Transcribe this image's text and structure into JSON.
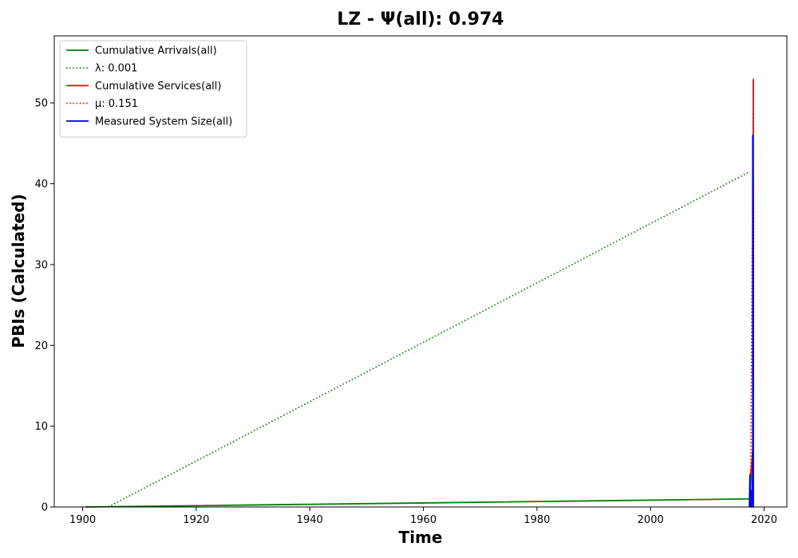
{
  "chart_data": {
    "type": "line",
    "title": "LZ -  Ψ(all): 0.974",
    "xlabel": "Time",
    "ylabel": "PBIs (Calculated)",
    "xlim": [
      1895,
      2024
    ],
    "ylim": [
      0,
      58.3
    ],
    "xticks": [
      1900,
      1920,
      1940,
      1960,
      1980,
      2000,
      2020
    ],
    "yticks": [
      0,
      10,
      20,
      30,
      40,
      50
    ],
    "grid": false,
    "legend_position": "top-left",
    "series": [
      {
        "name": "Cumulative Arrivals(all)",
        "style": "solid",
        "color": "#008000",
        "x": [
          1900.5,
          1960,
          2017.5,
          2017.8,
          2018.0
        ],
        "y": [
          0,
          0.5,
          1.0,
          5.0,
          7.0
        ]
      },
      {
        "name": "λ: 0.001",
        "style": "dotted",
        "color": "#008000",
        "x": [
          1904.5,
          2017.5
        ],
        "y": [
          0,
          41.5
        ]
      },
      {
        "name": "Cumulative Services(all)",
        "style": "solid",
        "color": "#ff0000",
        "x": [
          2017.6,
          2017.8,
          2018.0,
          2018.1,
          2018.1
        ],
        "y": [
          4.0,
          5.0,
          6.0,
          20.0,
          53.0
        ]
      },
      {
        "name": "μ: 0.151",
        "style": "dotted",
        "color": "#ff0000",
        "x": [
          2017.6,
          2018.1
        ],
        "y": [
          0,
          53.0
        ]
      },
      {
        "name": "Measured System Size(all)",
        "style": "solid",
        "color": "#0000ff",
        "x": [
          2017.4,
          2017.5,
          2017.6,
          2017.7,
          2017.8,
          2017.9,
          2018.0,
          2018.0,
          2018.1,
          2018.1,
          2018.2
        ],
        "y": [
          0,
          4.0,
          0,
          2.0,
          0,
          1.0,
          5.0,
          46.0,
          35.0,
          0,
          0
        ]
      }
    ]
  }
}
